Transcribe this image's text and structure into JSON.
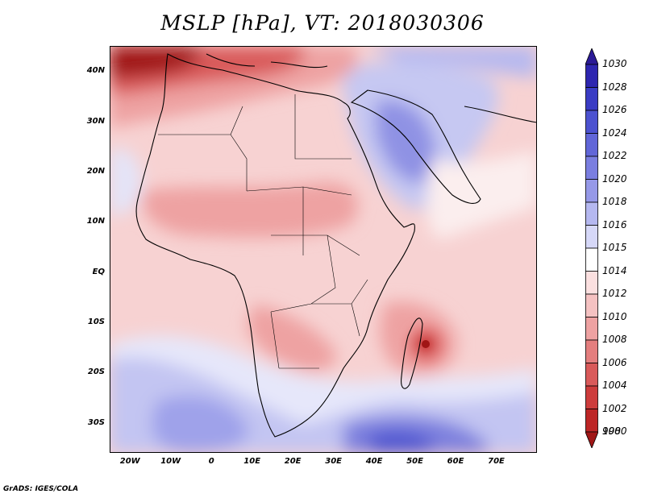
{
  "title": "MSLP [hPa], VT: 2018030306",
  "footer": "GrADS: IGES/COLA",
  "map": {
    "variable": "Mean sea level pressure",
    "units": "hPa",
    "region": "Africa, Middle East, western Indian Ocean",
    "lon_range": [
      -25,
      80
    ],
    "lat_range": [
      -36,
      45
    ]
  },
  "axes": {
    "lat_ticks": [
      {
        "value": 40,
        "label": "40N"
      },
      {
        "value": 30,
        "label": "30N"
      },
      {
        "value": 20,
        "label": "20N"
      },
      {
        "value": 10,
        "label": "10N"
      },
      {
        "value": 0,
        "label": "EQ"
      },
      {
        "value": -10,
        "label": "10S"
      },
      {
        "value": -20,
        "label": "20S"
      },
      {
        "value": -30,
        "label": "30S"
      }
    ],
    "lon_ticks": [
      {
        "value": -20,
        "label": "20W"
      },
      {
        "value": -10,
        "label": "10W"
      },
      {
        "value": 0,
        "label": "0"
      },
      {
        "value": 10,
        "label": "10E"
      },
      {
        "value": 20,
        "label": "20E"
      },
      {
        "value": 30,
        "label": "30E"
      },
      {
        "value": 40,
        "label": "40E"
      },
      {
        "value": 50,
        "label": "50E"
      },
      {
        "value": 60,
        "label": "60E"
      },
      {
        "value": 70,
        "label": "70E"
      }
    ]
  },
  "colorbar": {
    "levels": [
      {
        "label": "1030",
        "color": "#2b1a96"
      },
      {
        "label": "1028",
        "color": "#2e26b0"
      },
      {
        "label": "1026",
        "color": "#3a3cc4"
      },
      {
        "label": "1024",
        "color": "#4c52d0"
      },
      {
        "label": "1022",
        "color": "#6166d8"
      },
      {
        "label": "1020",
        "color": "#7a7ee0"
      },
      {
        "label": "1018",
        "color": "#9699e8"
      },
      {
        "label": "1016",
        "color": "#b5b8f0"
      },
      {
        "label": "1015",
        "color": "#d6d8f8"
      },
      {
        "label": "1014",
        "color": "#ffffff"
      },
      {
        "label": "1012",
        "color": "#fbe0e0"
      },
      {
        "label": "1010",
        "color": "#f5c2c2"
      },
      {
        "label": "1008",
        "color": "#eea2a2"
      },
      {
        "label": "1006",
        "color": "#e47e7e"
      },
      {
        "label": "1004",
        "color": "#d95a5a"
      },
      {
        "label": "1002",
        "color": "#cd3c3c"
      },
      {
        "label": "1000",
        "color": "#bd2626"
      },
      {
        "label": "998",
        "color": "#a01616"
      }
    ]
  },
  "pressure_systems": [
    {
      "type": "high",
      "lon": 45,
      "lat": -33
    },
    {
      "type": "high",
      "lon": 42,
      "lat": 22
    },
    {
      "type": "low",
      "lon": 54,
      "lat": -15
    },
    {
      "type": "low",
      "lon": 5,
      "lat": 42
    }
  ]
}
